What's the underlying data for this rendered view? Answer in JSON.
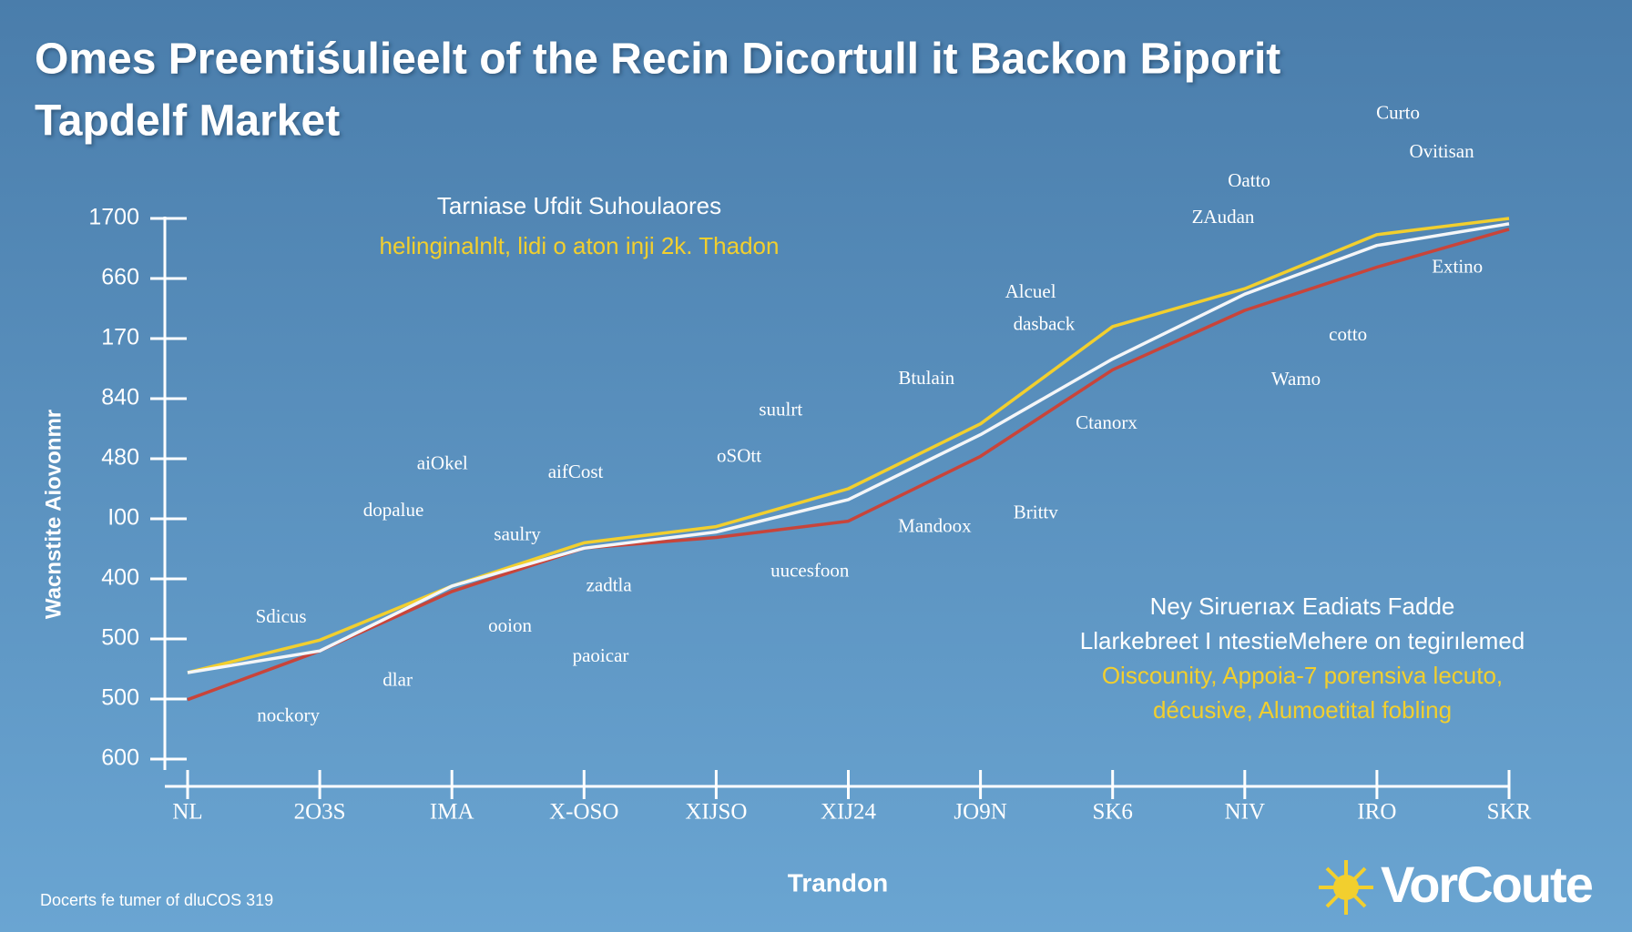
{
  "chart_data": {
    "type": "line",
    "title": [
      "Omes Preentiśulieelt of the Recin Dicortull it Backon Biporit",
      "Tapdelf Market"
    ],
    "subtitle": "Tarniase Ufdit Suhoulaores",
    "subtitle_note": "helinginalnlt, lidi o aton inji 2k. Thadon",
    "y_axis_label": "Wacnstite Aiovonmr",
    "x_axis_label": "Trandon",
    "categories": [
      "NL",
      "2O3S",
      "IMA",
      "X-OSO",
      "XIJSO",
      "XIJ24",
      "JO9N",
      "SK6",
      "NIV",
      "IRO",
      "SKR"
    ],
    "y_labels": [
      "1700",
      "660",
      "170",
      "840",
      "480",
      "I00",
      "400",
      "500",
      "500",
      "600"
    ],
    "ylim": [
      0,
      100
    ],
    "series": [
      {
        "color": "#f2cf2e",
        "values": [
          16,
          22,
          32,
          40,
          43,
          50,
          62,
          80,
          87,
          97,
          100
        ]
      },
      {
        "color": "#f4f6f8",
        "values": [
          16,
          20,
          32,
          39,
          42,
          48,
          60,
          74,
          86,
          95,
          99
        ]
      },
      {
        "color": "#c8443a",
        "values": [
          11,
          20,
          31,
          39,
          41,
          44,
          56,
          72,
          83,
          91,
          98
        ]
      }
    ],
    "annotations": [
      "Curto",
      "Ovitisan",
      "Oatto",
      "ZAudan",
      "Alcuel",
      "dasback",
      "Btulain",
      "Extino",
      "cotto",
      "Wamo",
      "Ctanorx",
      "suulrt",
      "oSOtt",
      "aiOkel",
      "aifCost",
      "dopalue",
      "Mandoox",
      "Brittv",
      "saulry",
      "uucesfoon",
      "zadtla",
      "Sdicus",
      "ooion",
      "paoicar",
      "dlar",
      "nockory"
    ],
    "notes": [
      {
        "text": "Ney Siruerıaⅹ Eadiats Fadde",
        "color": "#ffffff"
      },
      {
        "text": "Llarkebreet I ntestieMehere on tegirılemed",
        "color": "#ffffff"
      },
      {
        "text": "Oiscounity, Appoia-7 porensiva lecuto,",
        "color": "#f2cf2e"
      },
      {
        "text": "décusive, Alumoetital fobling",
        "color": "#f2cf2e"
      }
    ],
    "footer": "Docerts fe tumer of dluCOS 319",
    "logo": "VorCoute"
  }
}
